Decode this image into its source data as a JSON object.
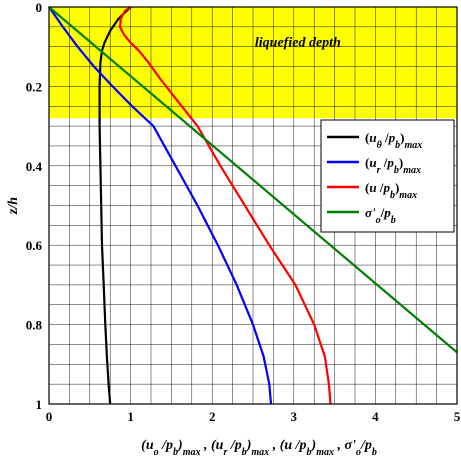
{
  "chart_data": {
    "type": "line",
    "title": "",
    "xlabel": "(uo/pb)max , (ur/pb)max , (u /pb)max , σ'o/pb",
    "ylabel": "z/h",
    "xlim": [
      0,
      5
    ],
    "ylim": [
      0,
      1
    ],
    "y_inverted": true,
    "x_ticks": [
      0,
      1,
      2,
      3,
      4,
      5
    ],
    "y_ticks": [
      0,
      0.2,
      0.4,
      0.6,
      0.8,
      1
    ],
    "x_tick_labels": [
      "0",
      "1",
      "2",
      "3",
      "4",
      "5"
    ],
    "y_tick_labels": [
      "0",
      "0.2",
      "0.4",
      "0.6",
      "0.8",
      "1"
    ],
    "grid": true,
    "legend_position": "right",
    "shaded_region": {
      "y_from": 0,
      "y_to": 0.28,
      "color": "#ffff00",
      "label": "liquefied depth"
    },
    "series": [
      {
        "name": "(uθ/pb)max",
        "color": "#000000",
        "x": [
          1.0,
          0.95,
          0.85,
          0.75,
          0.68,
          0.65,
          0.63,
          0.62,
          0.62,
          0.63,
          0.64,
          0.65,
          0.67,
          0.69,
          0.71,
          0.73,
          0.75
        ],
        "y": [
          0.0,
          0.01,
          0.03,
          0.06,
          0.09,
          0.11,
          0.14,
          0.2,
          0.3,
          0.4,
          0.5,
          0.6,
          0.7,
          0.8,
          0.88,
          0.95,
          1.0
        ]
      },
      {
        "name": "(ur/pb)max",
        "color": "#0000ff",
        "x": [
          0.0,
          0.17,
          0.35,
          0.55,
          0.78,
          1.02,
          1.28,
          1.55,
          1.82,
          2.07,
          2.3,
          2.5,
          2.63,
          2.7,
          2.72
        ],
        "y": [
          0.0,
          0.05,
          0.1,
          0.15,
          0.2,
          0.25,
          0.3,
          0.4,
          0.5,
          0.6,
          0.7,
          0.8,
          0.88,
          0.95,
          1.0
        ]
      },
      {
        "name": "(u /pb)max",
        "color": "#ff0000",
        "x": [
          1.0,
          0.93,
          0.88,
          0.87,
          0.92,
          1.0,
          1.1,
          1.22,
          1.36,
          1.55,
          1.82,
          2.1,
          2.4,
          2.7,
          3.02,
          3.25,
          3.38,
          3.43,
          3.45
        ],
        "y": [
          0.0,
          0.01,
          0.03,
          0.05,
          0.07,
          0.09,
          0.11,
          0.14,
          0.18,
          0.23,
          0.3,
          0.4,
          0.5,
          0.6,
          0.7,
          0.8,
          0.88,
          0.95,
          1.0
        ]
      },
      {
        "name": "σ'o/pb",
        "color": "#008000",
        "x": [
          0.0,
          5.0
        ],
        "y": [
          0.0,
          0.87
        ]
      }
    ],
    "annotations": [
      {
        "text": "liquefied depth",
        "x": 3.05,
        "y": 0.15
      }
    ]
  }
}
